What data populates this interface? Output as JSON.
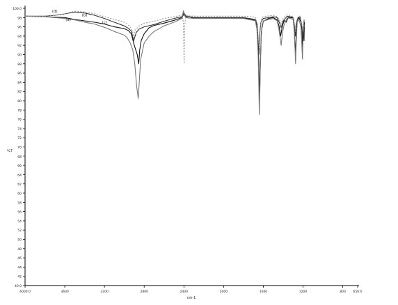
{
  "chart_data": {
    "type": "line",
    "title": "",
    "xlabel": "cm-1",
    "ylabel": "%T",
    "xlim": [
      4000,
      650
    ],
    "ylim": [
      40,
      100
    ],
    "x_ticks": [
      "4000.0",
      "3600",
      "3200",
      "2800",
      "2400",
      "2000",
      "1600",
      "1200",
      "800",
      "650.0"
    ],
    "y_ticks": [
      "100.0",
      "98",
      "96",
      "94",
      "92",
      "90",
      "88",
      "86",
      "84",
      "82",
      "80",
      "78",
      "76",
      "74",
      "72",
      "70",
      "68",
      "66",
      "64",
      "62",
      "60",
      "58",
      "56",
      "54",
      "52",
      "50",
      "48",
      "46",
      "44",
      "42",
      "40.0"
    ],
    "grid": false,
    "series": [
      {
        "name": "(a)",
        "stroke": "#111111",
        "dash": "",
        "points": [
          [
            4000,
            98.3
          ],
          [
            3800,
            98.2
          ],
          [
            3600,
            98.0
          ],
          [
            3500,
            97.6
          ],
          [
            3400,
            97.3
          ],
          [
            3300,
            97.0
          ],
          [
            3200,
            96.6
          ],
          [
            3100,
            96.0
          ],
          [
            3000,
            95.6
          ],
          [
            2960,
            95.2
          ],
          [
            2930,
            94.5
          ],
          [
            2900,
            92.0
          ],
          [
            2870,
            90.0
          ],
          [
            2855,
            88.0
          ],
          [
            2845,
            91.0
          ],
          [
            2830,
            93.0
          ],
          [
            2800,
            94.5
          ],
          [
            2750,
            95.8
          ],
          [
            2700,
            96.3
          ],
          [
            2600,
            96.8
          ],
          [
            2500,
            97.4
          ],
          [
            2420,
            98.0
          ],
          [
            2400,
            98.8
          ],
          [
            2390,
            98.4
          ],
          [
            2350,
            97.9
          ],
          [
            2300,
            98.0
          ],
          [
            2000,
            97.9
          ],
          [
            1800,
            97.9
          ],
          [
            1680,
            97.4
          ],
          [
            1660,
            96.0
          ],
          [
            1645,
            88.0
          ],
          [
            1638,
            80.0
          ],
          [
            1632,
            86.0
          ],
          [
            1620,
            95.0
          ],
          [
            1600,
            97.2
          ],
          [
            1550,
            97.8
          ],
          [
            1500,
            98.0
          ],
          [
            1460,
            97.5
          ],
          [
            1440,
            96.0
          ],
          [
            1425,
            94.0
          ],
          [
            1410,
            96.0
          ],
          [
            1390,
            97.4
          ],
          [
            1370,
            97.0
          ],
          [
            1350,
            98.0
          ],
          [
            1320,
            98.0
          ],
          [
            1300,
            97.9
          ],
          [
            1290,
            96.0
          ],
          [
            1282,
            92.0
          ],
          [
            1276,
            90.0
          ],
          [
            1270,
            94.0
          ],
          [
            1260,
            97.4
          ],
          [
            1240,
            98.0
          ],
          [
            1220,
            97.0
          ],
          [
            1210,
            95.0
          ],
          [
            1205,
            91.0
          ],
          [
            1200,
            96.0
          ],
          [
            1190,
            93.0
          ],
          [
            1186,
            97.0
          ]
        ]
      },
      {
        "name": "(b)",
        "stroke": "#333333",
        "dash": "",
        "points": [
          [
            4000,
            98.3
          ],
          [
            3800,
            98.3
          ],
          [
            3700,
            98.5
          ],
          [
            3600,
            98.8
          ],
          [
            3500,
            99.2
          ],
          [
            3400,
            99.0
          ],
          [
            3300,
            98.5
          ],
          [
            3200,
            97.8
          ],
          [
            3100,
            97.0
          ],
          [
            3000,
            96.2
          ],
          [
            2960,
            95.7
          ],
          [
            2930,
            95.1
          ],
          [
            2905,
            93.0
          ],
          [
            2880,
            94.8
          ],
          [
            2850,
            95.5
          ],
          [
            2800,
            96.0
          ],
          [
            2700,
            96.5
          ],
          [
            2600,
            97.2
          ],
          [
            2500,
            97.8
          ],
          [
            2420,
            98.2
          ],
          [
            2400,
            99.0
          ],
          [
            2380,
            98.4
          ],
          [
            2300,
            98.0
          ],
          [
            2000,
            98.0
          ],
          [
            1800,
            98.0
          ],
          [
            1680,
            97.6
          ],
          [
            1662,
            96.5
          ],
          [
            1650,
            92.5
          ],
          [
            1644,
            90.0
          ],
          [
            1638,
            94.0
          ],
          [
            1625,
            97.0
          ],
          [
            1600,
            97.8
          ],
          [
            1500,
            98.2
          ],
          [
            1460,
            98.0
          ],
          [
            1440,
            97.0
          ],
          [
            1420,
            95.8
          ],
          [
            1400,
            97.3
          ],
          [
            1360,
            98.3
          ],
          [
            1330,
            98.2
          ],
          [
            1300,
            98.0
          ],
          [
            1285,
            96.0
          ],
          [
            1278,
            94.0
          ],
          [
            1270,
            96.5
          ],
          [
            1250,
            98.0
          ],
          [
            1230,
            98.2
          ],
          [
            1215,
            96.5
          ],
          [
            1205,
            94.0
          ],
          [
            1195,
            96.0
          ],
          [
            1188,
            97.5
          ]
        ]
      },
      {
        "name": "(c)",
        "stroke": "#777777",
        "dash": "",
        "points": [
          [
            4000,
            98.3
          ],
          [
            3800,
            98.2
          ],
          [
            3700,
            98.0
          ],
          [
            3600,
            97.8
          ],
          [
            3500,
            97.5
          ],
          [
            3400,
            97.0
          ],
          [
            3300,
            96.6
          ],
          [
            3200,
            95.9
          ],
          [
            3100,
            95.0
          ],
          [
            3000,
            94.2
          ],
          [
            2970,
            93.6
          ],
          [
            2940,
            92.5
          ],
          [
            2915,
            91.0
          ],
          [
            2895,
            88.0
          ],
          [
            2875,
            83.0
          ],
          [
            2860,
            80.5
          ],
          [
            2850,
            84.0
          ],
          [
            2835,
            89.0
          ],
          [
            2800,
            92.5
          ],
          [
            2750,
            94.0
          ],
          [
            2700,
            95.0
          ],
          [
            2600,
            96.2
          ],
          [
            2500,
            97.0
          ],
          [
            2420,
            97.8
          ],
          [
            2405,
            99.5
          ],
          [
            2395,
            98.5
          ],
          [
            2380,
            98.0
          ],
          [
            2300,
            97.8
          ],
          [
            2000,
            97.8
          ],
          [
            1800,
            97.8
          ],
          [
            1680,
            97.3
          ],
          [
            1665,
            95.5
          ],
          [
            1652,
            90.0
          ],
          [
            1645,
            83.0
          ],
          [
            1640,
            77.0
          ],
          [
            1635,
            82.0
          ],
          [
            1628,
            91.0
          ],
          [
            1615,
            96.0
          ],
          [
            1600,
            97.3
          ],
          [
            1500,
            97.8
          ],
          [
            1460,
            97.3
          ],
          [
            1440,
            95.0
          ],
          [
            1420,
            92.0
          ],
          [
            1408,
            94.5
          ],
          [
            1390,
            96.5
          ],
          [
            1360,
            97.9
          ],
          [
            1320,
            97.8
          ],
          [
            1300,
            97.5
          ],
          [
            1288,
            95.0
          ],
          [
            1280,
            91.0
          ],
          [
            1275,
            88.0
          ],
          [
            1268,
            93.0
          ],
          [
            1258,
            97.0
          ],
          [
            1240,
            97.6
          ],
          [
            1222,
            96.0
          ],
          [
            1212,
            92.0
          ],
          [
            1206,
            89.0
          ],
          [
            1200,
            94.0
          ],
          [
            1195,
            97.0
          ],
          [
            1188,
            96.0
          ]
        ]
      },
      {
        "name": "(d)",
        "stroke": "#999999",
        "dash": "2,2",
        "points": [
          [
            4000,
            98.3
          ],
          [
            3800,
            98.3
          ],
          [
            3600,
            98.8
          ],
          [
            3500,
            99.4
          ],
          [
            3400,
            99.2
          ],
          [
            3300,
            98.8
          ],
          [
            3200,
            98.2
          ],
          [
            3100,
            97.6
          ],
          [
            3000,
            97.0
          ],
          [
            2950,
            96.2
          ],
          [
            2920,
            95.3
          ],
          [
            2905,
            93.6
          ],
          [
            2895,
            95.2
          ],
          [
            2850,
            96.2
          ],
          [
            2800,
            96.8
          ],
          [
            2700,
            97.2
          ],
          [
            2600,
            97.8
          ],
          [
            2500,
            98.2
          ],
          [
            2420,
            98.5
          ],
          [
            2405,
            97.0
          ],
          [
            2398,
            88.0
          ],
          [
            2393,
            96.0
          ],
          [
            2380,
            98.4
          ],
          [
            2300,
            98.3
          ],
          [
            2000,
            98.3
          ],
          [
            1800,
            98.3
          ],
          [
            1680,
            98.1
          ],
          [
            1662,
            96.8
          ],
          [
            1650,
            93.0
          ],
          [
            1640,
            91.5
          ],
          [
            1632,
            95.0
          ],
          [
            1620,
            97.6
          ],
          [
            1600,
            98.2
          ],
          [
            1500,
            98.5
          ],
          [
            1460,
            98.2
          ],
          [
            1440,
            97.6
          ],
          [
            1420,
            96.7
          ],
          [
            1400,
            97.9
          ],
          [
            1360,
            98.6
          ],
          [
            1330,
            98.4
          ],
          [
            1300,
            98.2
          ],
          [
            1285,
            96.5
          ],
          [
            1276,
            95.0
          ],
          [
            1268,
            97.2
          ],
          [
            1250,
            98.2
          ],
          [
            1232,
            98.3
          ],
          [
            1215,
            97.0
          ],
          [
            1205,
            95.5
          ],
          [
            1195,
            96.5
          ],
          [
            1188,
            97.8
          ]
        ]
      }
    ]
  }
}
